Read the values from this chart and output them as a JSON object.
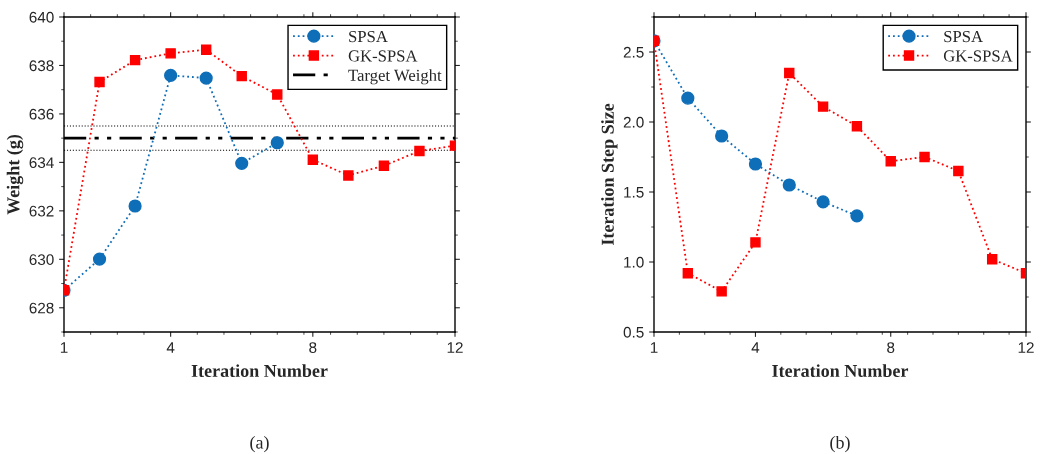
{
  "chart_data": [
    {
      "type": "line",
      "title": "(a)",
      "xlabel": "Iteration Number",
      "ylabel": "Weight (g)",
      "x": [
        1,
        2,
        3,
        4,
        5,
        6,
        7,
        8,
        9,
        10,
        11,
        12
      ],
      "xlim": [
        1,
        12
      ],
      "xticks": [
        1,
        4,
        8,
        12
      ],
      "ylim": [
        627,
        640
      ],
      "yticks": [
        628,
        630,
        632,
        634,
        636,
        638,
        640
      ],
      "series": [
        {
          "name": "SPSA",
          "color": "#0f6eb8",
          "marker": "circle",
          "values": [
            628.72,
            630.01,
            632.2,
            637.59,
            637.48,
            633.96,
            634.81,
            null,
            null,
            null,
            null,
            null
          ]
        },
        {
          "name": "GK-SPSA",
          "color": "#ff0000",
          "marker": "square",
          "values": [
            628.72,
            637.32,
            638.22,
            638.5,
            638.65,
            637.56,
            636.8,
            634.11,
            633.46,
            633.86,
            634.47,
            634.69
          ]
        }
      ],
      "ref_lines": [
        {
          "axis": "y",
          "value": 635,
          "label": "Target Weight",
          "color": "#000000",
          "line_style": "dashdot"
        },
        {
          "axis": "y",
          "value": 635.5,
          "color": "#000000",
          "line_style": "dotted"
        },
        {
          "axis": "y",
          "value": 634.5,
          "color": "#000000",
          "line_style": "dotted"
        }
      ],
      "line_style": "dotted",
      "legend": "top right",
      "grid": false,
      "tick_labels": "xy"
    },
    {
      "type": "line",
      "title": "(b)",
      "xlabel": "Iteration Number",
      "ylabel": "Iteration Step Size",
      "x": [
        1,
        2,
        3,
        4,
        5,
        6,
        7,
        8,
        9,
        10,
        11,
        12
      ],
      "xlim": [
        1,
        12
      ],
      "xticks": [
        1,
        4,
        8,
        12
      ],
      "ylim": [
        0.5,
        2.75
      ],
      "yticks": [
        {
          "value": 0.5,
          "label": "0.5"
        },
        {
          "value": 1.0,
          "label": "1.0"
        },
        {
          "value": 1.5,
          "label": "1.5"
        },
        {
          "value": 2.0,
          "label": "2.0"
        },
        {
          "value": 2.5,
          "label": "2.5"
        }
      ],
      "series": [
        {
          "name": "SPSA",
          "color": "#0f6eb8",
          "marker": "circle",
          "values": [
            2.58,
            2.17,
            1.9,
            1.7,
            1.55,
            1.43,
            1.33,
            null,
            null,
            null,
            null,
            null
          ]
        },
        {
          "name": "GK-SPSA",
          "color": "#ff0000",
          "marker": "square",
          "values": [
            2.58,
            0.92,
            0.79,
            1.14,
            2.35,
            2.11,
            1.97,
            1.72,
            1.75,
            1.65,
            1.02,
            0.92
          ]
        }
      ],
      "line_style": "dotted",
      "legend": "top right",
      "grid": false,
      "tick_labels": "xy"
    }
  ]
}
